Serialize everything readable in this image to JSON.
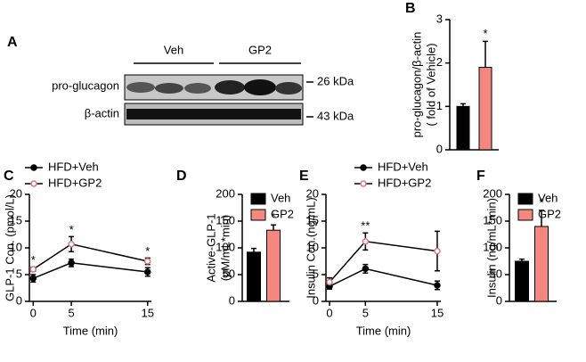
{
  "panel_a": {
    "label": "A",
    "groups": [
      "Veh",
      "GP2"
    ],
    "rows": [
      {
        "name": "pro-glucagon",
        "size": "26 kDa"
      },
      {
        "name": "β-actin",
        "size": "43 kDa"
      }
    ]
  },
  "chart_data": [
    {
      "label": "B",
      "type": "bar",
      "ylabel": [
        "pro-glucagon/β-actin",
        "( fold of Vehicle)"
      ],
      "ylim": [
        0,
        3
      ],
      "yticks": [
        0,
        1,
        2,
        3
      ],
      "series": [
        {
          "color": "#000000",
          "values": [
            1.0
          ],
          "errors": [
            0.06
          ]
        },
        {
          "color": "#f4877f",
          "values": [
            1.9
          ],
          "errors": [
            0.6
          ],
          "annotations": [
            "*"
          ]
        }
      ]
    },
    {
      "label": "C",
      "type": "line",
      "ylabel": [
        "GLP-1 Con. (pmol/L)"
      ],
      "xlabel": "Time (min)",
      "x": [
        0,
        5,
        15
      ],
      "xlim": [
        -0.5,
        15.5
      ],
      "xticks": [
        0,
        5,
        15
      ],
      "ylim": [
        0,
        20
      ],
      "yticks": [
        0,
        5,
        10,
        15,
        20
      ],
      "series": [
        {
          "name": "HFD+Veh",
          "color": "#000000",
          "values": [
            4.3,
            7.2,
            5.5
          ],
          "errors": [
            0.7,
            0.7,
            0.8
          ]
        },
        {
          "name": "HFD+GP2",
          "color": "#d9777b",
          "values": [
            6.0,
            10.7,
            7.5
          ],
          "errors": [
            0.4,
            1.4,
            0.6
          ],
          "annotations": [
            "*",
            "*",
            "*"
          ]
        }
      ]
    },
    {
      "label": "D",
      "type": "bar",
      "ylabel": [
        "Active-GLP-1",
        "(pM/mL*min)"
      ],
      "ylim": [
        0,
        200
      ],
      "yticks": [
        0,
        50,
        100,
        150,
        200
      ],
      "series": [
        {
          "name": "Veh",
          "color": "#000000",
          "values": [
            92
          ],
          "errors": [
            7
          ]
        },
        {
          "name": "GP2",
          "color": "#f4877f",
          "values": [
            133
          ],
          "errors": [
            10
          ],
          "annotations": [
            "*"
          ]
        }
      ]
    },
    {
      "label": "E",
      "type": "line",
      "ylabel": [
        "Insulin Con.(ng/mL)"
      ],
      "xlabel": "Time (min)",
      "x": [
        0,
        5,
        15
      ],
      "xlim": [
        -0.5,
        15.5
      ],
      "xticks": [
        0,
        5,
        15
      ],
      "ylim": [
        0,
        20
      ],
      "yticks": [
        0,
        5,
        10,
        15,
        20
      ],
      "series": [
        {
          "name": "HFD+Veh",
          "color": "#000000",
          "values": [
            2.8,
            6.1,
            3.0
          ],
          "errors": [
            0.5,
            0.8,
            0.8
          ]
        },
        {
          "name": "HFD+GP2",
          "color": "#d9777b",
          "values": [
            3.6,
            11.2,
            9.4
          ],
          "errors": [
            0.8,
            1.6,
            3.7
          ],
          "annotations": [
            null,
            "**",
            null
          ]
        }
      ]
    },
    {
      "label": "F",
      "type": "bar",
      "ylabel": [
        "Insulin (ng/mL*min)"
      ],
      "ylim": [
        0,
        200
      ],
      "yticks": [
        0,
        50,
        100,
        150,
        200
      ],
      "series": [
        {
          "name": "Veh",
          "color": "#000000",
          "values": [
            75
          ],
          "errors": [
            4
          ]
        },
        {
          "name": "GP2",
          "color": "#f4877f",
          "values": [
            140
          ],
          "errors": [
            30
          ],
          "annotations": [
            "*"
          ]
        }
      ]
    }
  ]
}
